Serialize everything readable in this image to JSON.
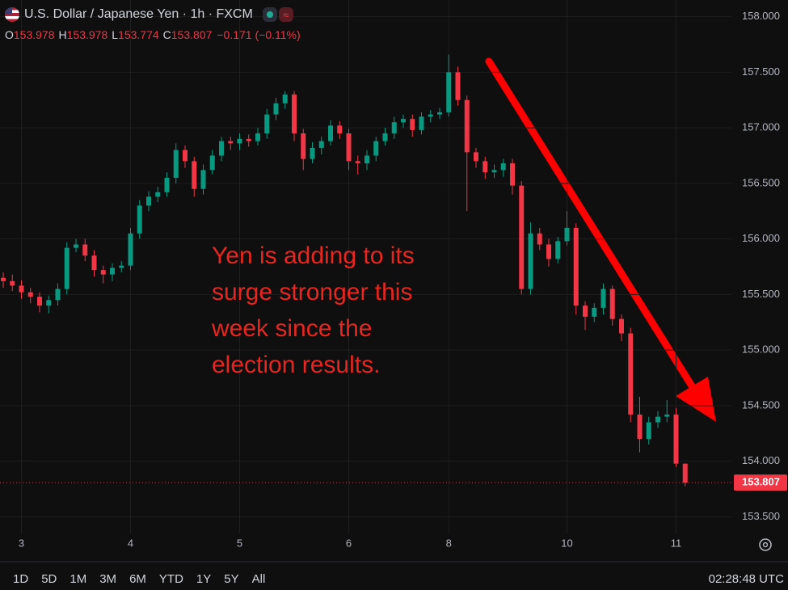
{
  "header": {
    "symbol": "U.S. Dollar / Japanese Yen · 1h · FXCM",
    "ohlc": [
      {
        "key": "O",
        "value": "153.978"
      },
      {
        "key": "H",
        "value": "153.978"
      },
      {
        "key": "L",
        "value": "153.774"
      },
      {
        "key": "C",
        "value": "153.807"
      }
    ],
    "change": "−0.171 (−0.11%)"
  },
  "toolbar": {
    "ranges": [
      "1D",
      "5D",
      "1M",
      "3M",
      "6M",
      "YTD",
      "1Y",
      "5Y",
      "All"
    ],
    "clock": "02:28:48 UTC"
  },
  "chart_data": {
    "type": "candlestick",
    "categories": [
      null,
      null,
      "3",
      null,
      null,
      null,
      null,
      null,
      null,
      null,
      null,
      null,
      null,
      null,
      "4",
      null,
      null,
      null,
      null,
      null,
      null,
      null,
      null,
      null,
      null,
      null,
      "5",
      null,
      null,
      null,
      null,
      null,
      null,
      null,
      null,
      null,
      null,
      null,
      "6",
      null,
      null,
      null,
      null,
      null,
      null,
      null,
      null,
      null,
      null,
      "8",
      null,
      null,
      null,
      null,
      null,
      null,
      null,
      null,
      null,
      null,
      null,
      null,
      "10",
      null,
      null,
      null,
      null,
      null,
      null,
      null,
      null,
      null,
      null,
      null,
      "11",
      null
    ],
    "open": [
      155.65,
      155.62,
      155.58,
      155.52,
      155.48,
      155.4,
      155.45,
      155.55,
      155.92,
      155.95,
      155.85,
      155.72,
      155.68,
      155.74,
      155.76,
      156.05,
      156.3,
      156.38,
      156.42,
      156.55,
      156.8,
      156.7,
      156.45,
      156.62,
      156.75,
      156.88,
      156.86,
      156.9,
      156.88,
      156.95,
      157.12,
      157.22,
      157.3,
      156.95,
      156.72,
      156.82,
      156.88,
      157.02,
      156.95,
      156.7,
      156.68,
      156.75,
      156.88,
      156.95,
      157.05,
      157.08,
      156.98,
      157.1,
      157.12,
      157.14,
      157.5,
      157.25,
      156.78,
      156.7,
      156.6,
      156.62,
      156.68,
      156.48,
      155.55,
      156.05,
      155.95,
      155.82,
      155.98,
      156.1,
      155.4,
      155.3,
      155.38,
      155.55,
      155.28,
      155.15,
      154.42,
      154.2,
      154.35,
      154.4,
      154.42,
      153.978
    ],
    "high": [
      155.7,
      155.68,
      155.63,
      155.56,
      155.52,
      155.49,
      155.6,
      155.97,
      156.0,
      156.0,
      155.9,
      155.76,
      155.78,
      155.8,
      156.1,
      156.35,
      156.43,
      156.47,
      156.6,
      156.86,
      156.84,
      156.74,
      156.67,
      156.8,
      156.92,
      156.92,
      156.95,
      156.94,
      157.0,
      157.17,
      157.27,
      157.33,
      157.33,
      156.99,
      156.87,
      156.92,
      157.07,
      157.06,
      156.99,
      156.75,
      156.8,
      156.92,
      157.0,
      157.1,
      157.12,
      157.12,
      157.14,
      157.16,
      157.18,
      157.66,
      157.55,
      157.29,
      156.82,
      156.74,
      156.67,
      156.72,
      156.72,
      156.52,
      156.15,
      156.1,
      156.0,
      156.02,
      156.25,
      156.14,
      155.44,
      155.42,
      155.6,
      155.58,
      155.32,
      155.2,
      154.58,
      154.4,
      154.45,
      154.55,
      154.48,
      153.978
    ],
    "low": [
      155.56,
      155.53,
      155.46,
      155.42,
      155.34,
      155.33,
      155.4,
      155.5,
      155.88,
      155.8,
      155.66,
      155.6,
      155.62,
      155.7,
      155.72,
      156.0,
      156.25,
      156.33,
      156.38,
      156.5,
      156.64,
      156.38,
      156.4,
      156.58,
      156.7,
      156.8,
      156.8,
      156.83,
      156.84,
      156.9,
      157.07,
      157.17,
      156.88,
      156.62,
      156.68,
      156.76,
      156.84,
      156.9,
      156.62,
      156.58,
      156.62,
      156.7,
      156.84,
      156.9,
      157.0,
      156.92,
      156.94,
      157.05,
      157.08,
      157.1,
      157.2,
      156.25,
      156.64,
      156.54,
      156.55,
      156.56,
      156.4,
      155.5,
      155.5,
      155.9,
      155.75,
      155.78,
      155.94,
      155.32,
      155.18,
      155.25,
      155.32,
      155.22,
      155.08,
      154.35,
      154.08,
      154.15,
      154.3,
      154.35,
      153.95,
      153.774
    ],
    "close": [
      155.62,
      155.58,
      155.52,
      155.48,
      155.4,
      155.45,
      155.55,
      155.92,
      155.95,
      155.85,
      155.72,
      155.68,
      155.74,
      155.76,
      156.05,
      156.3,
      156.38,
      156.42,
      156.55,
      156.8,
      156.7,
      156.45,
      156.62,
      156.75,
      156.88,
      156.86,
      156.9,
      156.88,
      156.95,
      157.12,
      157.22,
      157.3,
      156.95,
      156.72,
      156.82,
      156.88,
      157.02,
      156.95,
      156.7,
      156.68,
      156.75,
      156.88,
      156.95,
      157.05,
      157.08,
      156.98,
      157.1,
      157.12,
      157.14,
      157.5,
      157.25,
      156.78,
      156.7,
      156.6,
      156.62,
      156.68,
      156.48,
      155.55,
      156.05,
      155.95,
      155.82,
      155.98,
      156.1,
      155.4,
      155.3,
      155.38,
      155.55,
      155.28,
      155.15,
      154.42,
      154.2,
      154.35,
      154.4,
      154.42,
      153.978,
      153.807
    ],
    "up_color": "#089981",
    "down_color": "#f23645",
    "ylim": [
      153.35,
      158.15
    ],
    "yticks": [
      {
        "value": 153.5,
        "label": "153.500"
      },
      {
        "value": 154,
        "label": "154.000"
      },
      {
        "value": 154.5,
        "label": "154.500"
      },
      {
        "value": 155,
        "label": "155.000"
      },
      {
        "value": 155.5,
        "label": "155.500"
      },
      {
        "value": 156,
        "label": "156.000"
      },
      {
        "value": 156.5,
        "label": "156.500"
      },
      {
        "value": 157,
        "label": "157.000"
      },
      {
        "value": 157.5,
        "label": "157.500"
      },
      {
        "value": 158,
        "label": "158.000"
      }
    ],
    "grid": true,
    "last_price": {
      "value": 153.807,
      "label": "153.807"
    },
    "annotation": [
      "Yen is adding to its",
      "surge stronger this",
      "week since the",
      "election results."
    ]
  }
}
